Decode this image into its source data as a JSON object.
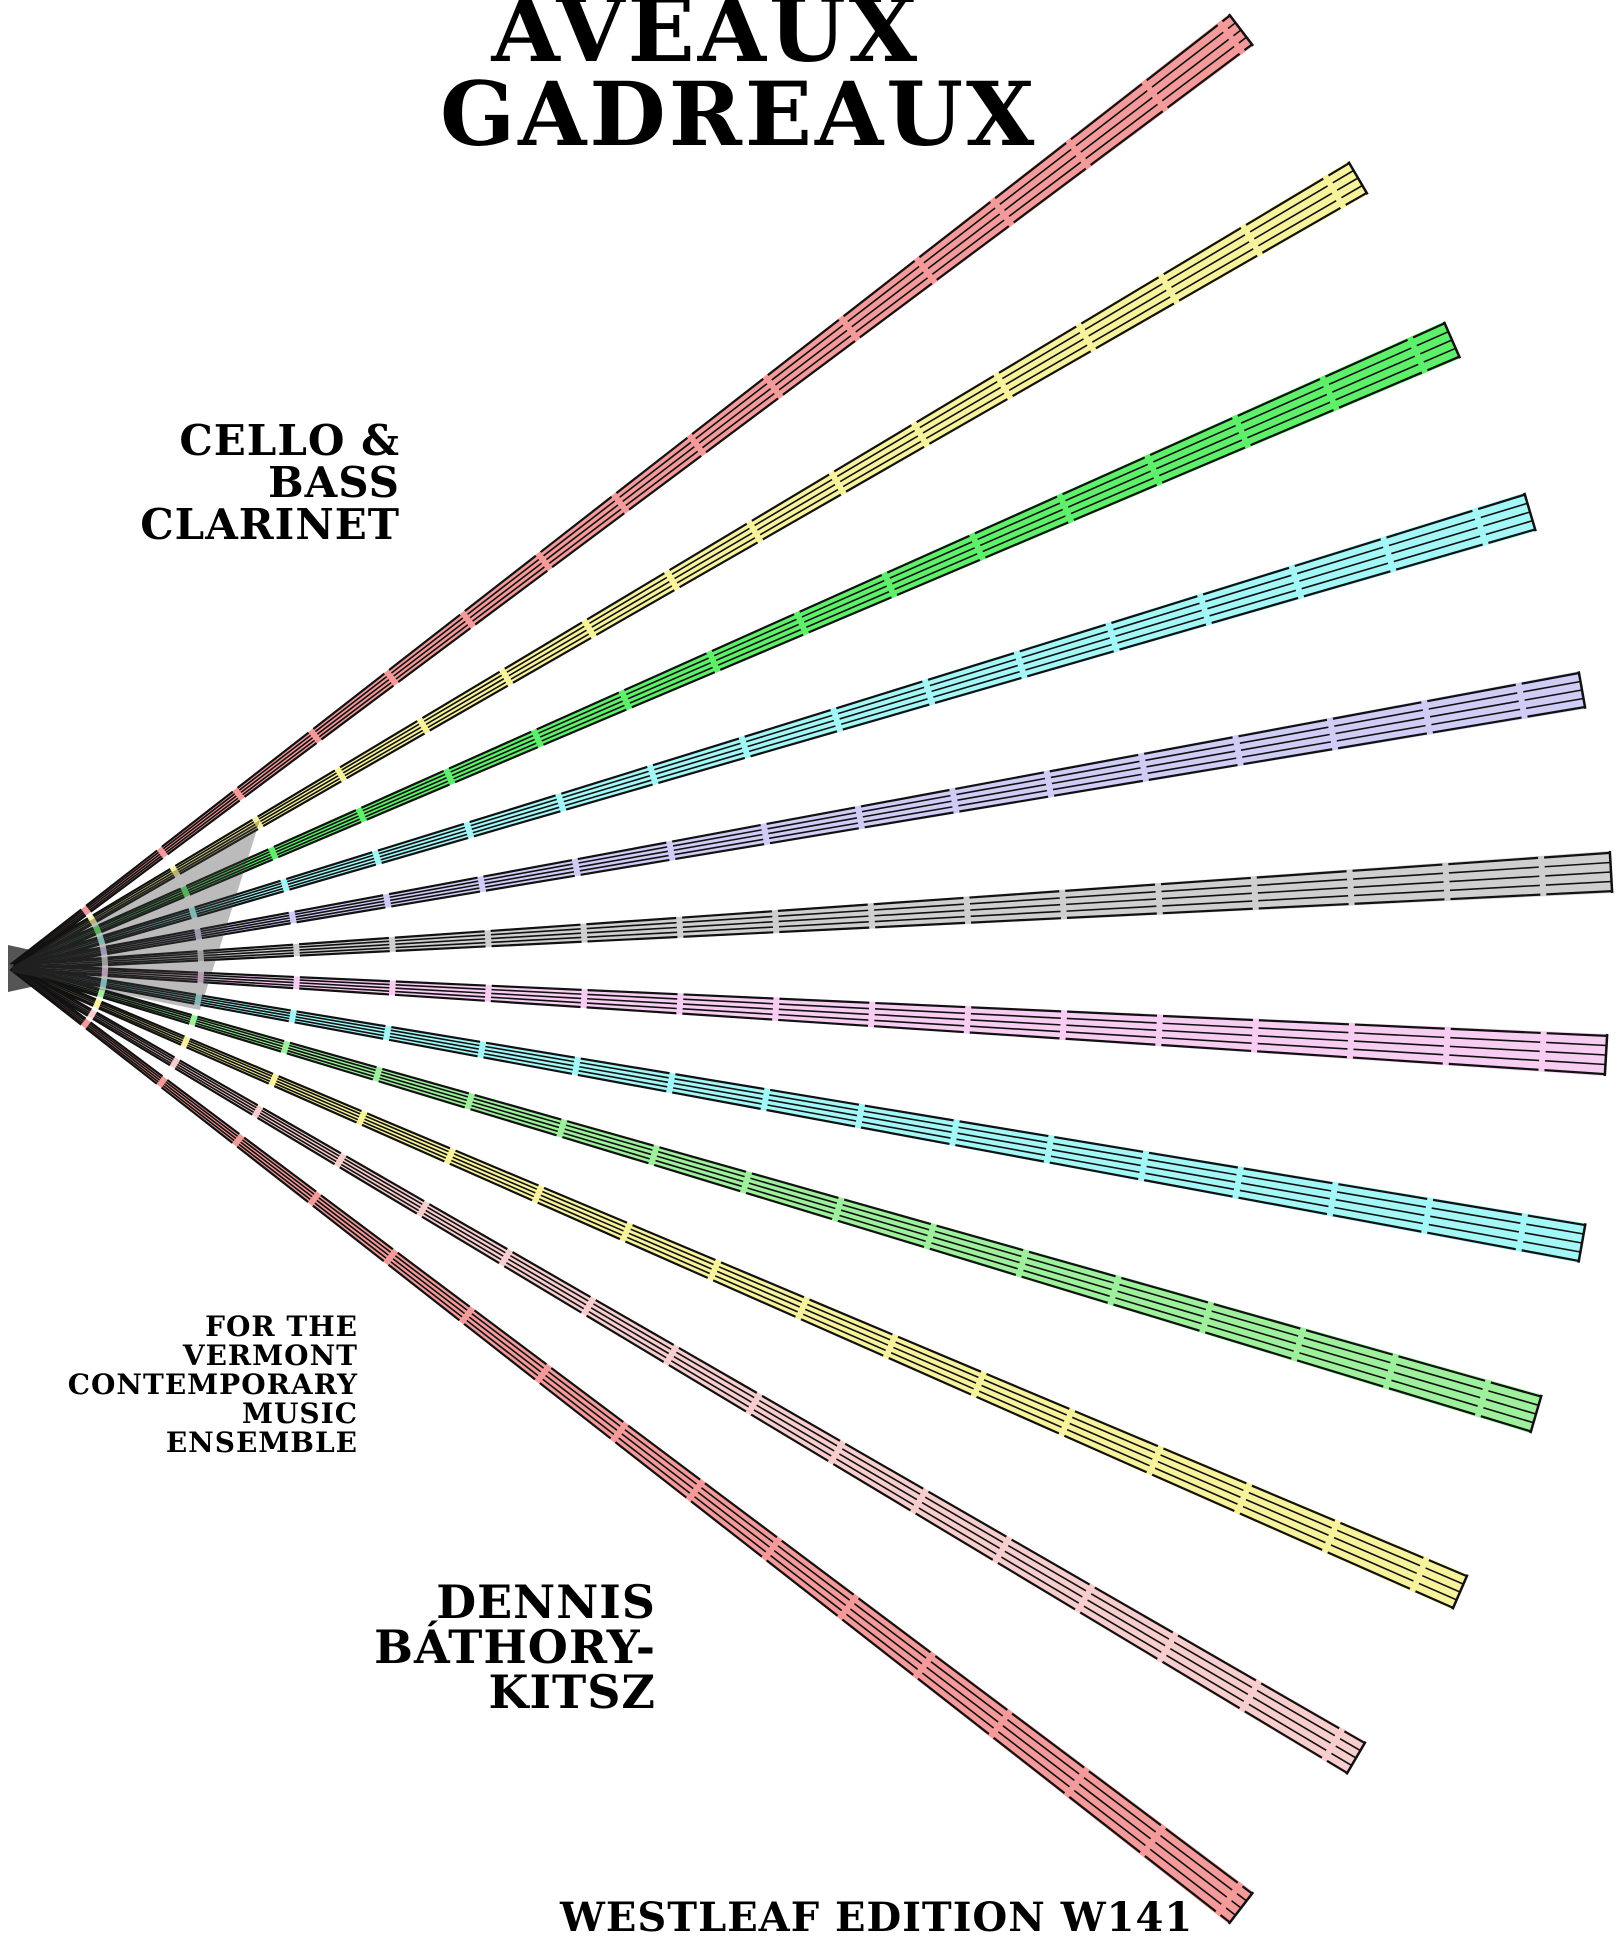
{
  "title": {
    "line1": "Aveaux",
    "line2": "Gadreaux"
  },
  "instrumentation": {
    "line1": "Cello &",
    "line2": "Bass",
    "line3": "Clarinet"
  },
  "dedication": {
    "line1": "For the",
    "line2": "Vermont",
    "line3": "Contemporary",
    "line4": "Music",
    "line5": "Ensemble"
  },
  "composer": {
    "line1": "Dennis",
    "line2": "Báthory-",
    "line3": "Kitsz"
  },
  "edition": "Westleaf Edition W141",
  "staves": [
    {
      "name": "staff-red-top",
      "color": "#f59a9a"
    },
    {
      "name": "staff-yellow-upper",
      "color": "#f7f29c"
    },
    {
      "name": "staff-green-upper",
      "color": "#5ef06a"
    },
    {
      "name": "staff-cyan-upper",
      "color": "#a3f7f7"
    },
    {
      "name": "staff-lavender",
      "color": "#cfcdf5"
    },
    {
      "name": "staff-gray",
      "color": "#cfcfcf"
    },
    {
      "name": "staff-pink",
      "color": "#f7cdf2"
    },
    {
      "name": "staff-cyan-lower",
      "color": "#a3f7f7"
    },
    {
      "name": "staff-green-lower",
      "color": "#9ef09c"
    },
    {
      "name": "staff-yellow-lower",
      "color": "#f7f29c"
    },
    {
      "name": "staff-rose",
      "color": "#f7cdcd"
    },
    {
      "name": "staff-red-bottom",
      "color": "#f59a9a"
    }
  ]
}
